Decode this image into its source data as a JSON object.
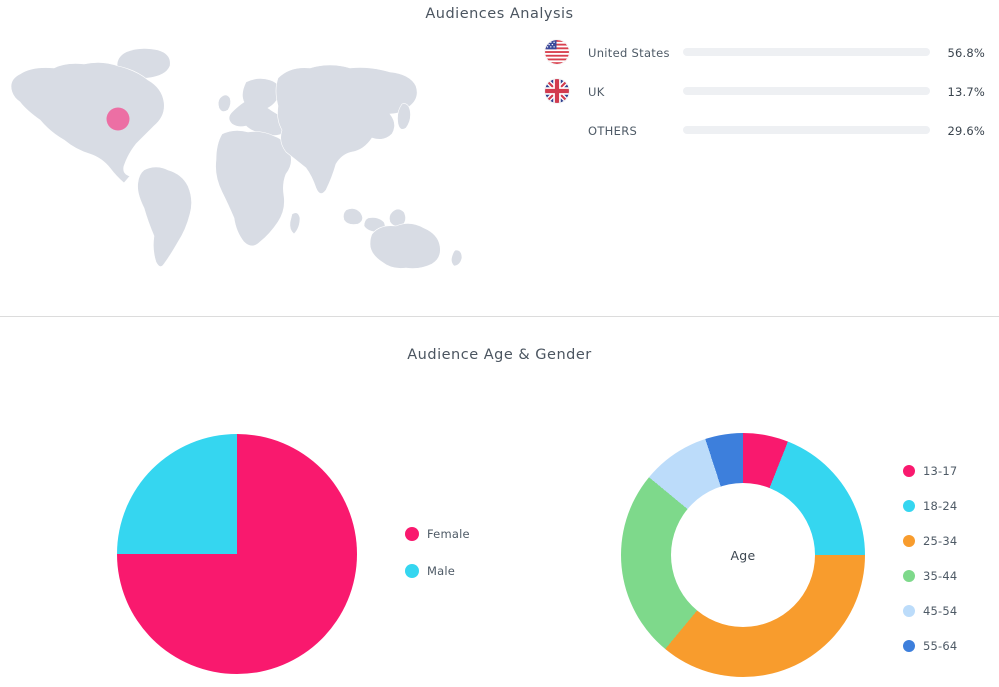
{
  "header": {
    "title": "Audiences Analysis"
  },
  "age_gender": {
    "title": "Audience Age & Gender"
  },
  "audiences": {
    "track_color": "#eef0f3",
    "rows": [
      {
        "label": "United States",
        "value": "56.8%"
      },
      {
        "label": "UK",
        "value": "13.7%"
      },
      {
        "label": "OTHERS",
        "value": "29.6%"
      }
    ]
  },
  "map": {
    "land_color": "#d8dce4",
    "marker_color": "#ec6fa4"
  },
  "chart_data": [
    {
      "id": "country-bars",
      "type": "bar",
      "categories": [
        "United States",
        "UK",
        "OTHERS"
      ],
      "values": [
        56.8,
        13.7,
        29.6
      ],
      "unit": "%",
      "color": "#2fd8f0"
    },
    {
      "id": "gender-pie",
      "type": "pie",
      "labels": [
        "Female",
        "Male"
      ],
      "values": [
        75,
        25
      ],
      "colors": [
        "#f9196e",
        "#35d6f0"
      ]
    },
    {
      "id": "age-donut",
      "type": "pie",
      "subtype": "donut",
      "labels": [
        "13-17",
        "18-24",
        "25-34",
        "35-44",
        "45-54",
        "55-64"
      ],
      "values": [
        6,
        19,
        36,
        25,
        9,
        5
      ],
      "colors": [
        "#f9196e",
        "#35d6f0",
        "#f89c2d",
        "#7ed98b",
        "#bcdcfa",
        "#3d7fdc"
      ],
      "center_label": "Age"
    }
  ]
}
